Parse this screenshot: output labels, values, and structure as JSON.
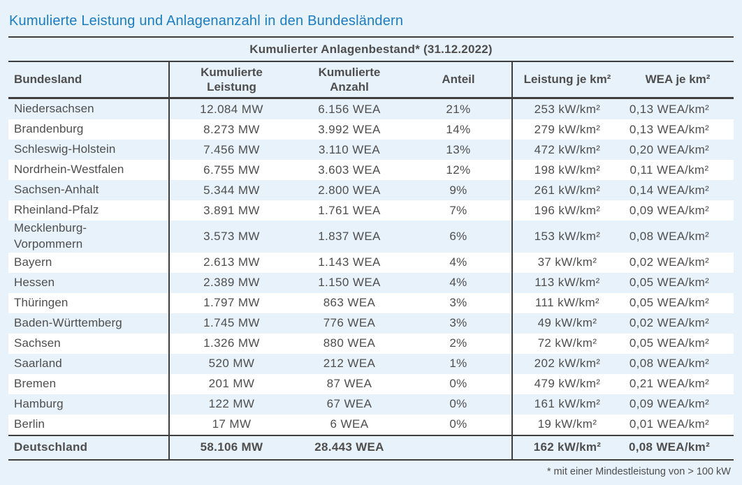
{
  "title": "Kumulierte Leistung und Anlagenanzahl in den Bundesländern",
  "table": {
    "band_header": "Kumulierter Anlagenbestand* (31.12.2022)",
    "columns": [
      "Bundesland",
      "Kumulierte\nLeistung",
      "Kumulierte\nAnzahl",
      "Anteil",
      "Leistung je km²",
      "WEA je km²"
    ],
    "rows": [
      {
        "state": "Niedersachsen",
        "power": "12.084 MW",
        "count": "6.156 WEA",
        "share": "21%",
        "power_density": "253 kW/km²",
        "wea_density": "0,13 WEA/km²"
      },
      {
        "state": "Brandenburg",
        "power": "8.273 MW",
        "count": "3.992 WEA",
        "share": "14%",
        "power_density": "279 kW/km²",
        "wea_density": "0,13 WEA/km²"
      },
      {
        "state": "Schleswig-Holstein",
        "power": "7.456 MW",
        "count": "3.110 WEA",
        "share": "13%",
        "power_density": "472 kW/km²",
        "wea_density": "0,20 WEA/km²"
      },
      {
        "state": "Nordrhein-Westfalen",
        "power": "6.755 MW",
        "count": "3.603 WEA",
        "share": "12%",
        "power_density": "198 kW/km²",
        "wea_density": "0,11 WEA/km²"
      },
      {
        "state": "Sachsen-Anhalt",
        "power": "5.344 MW",
        "count": "2.800 WEA",
        "share": "9%",
        "power_density": "261 kW/km²",
        "wea_density": "0,14 WEA/km²"
      },
      {
        "state": "Rheinland-Pfalz",
        "power": "3.891 MW",
        "count": "1.761 WEA",
        "share": "7%",
        "power_density": "196 kW/km²",
        "wea_density": "0,09 WEA/km²"
      },
      {
        "state": "Mecklenburg-\nVorpommern",
        "power": "3.573 MW",
        "count": "1.837 WEA",
        "share": "6%",
        "power_density": "153 kW/km²",
        "wea_density": "0,08 WEA/km²"
      },
      {
        "state": "Bayern",
        "power": "2.613 MW",
        "count": "1.143 WEA",
        "share": "4%",
        "power_density": "37 kW/km²",
        "wea_density": "0,02 WEA/km²"
      },
      {
        "state": "Hessen",
        "power": "2.389 MW",
        "count": "1.150 WEA",
        "share": "4%",
        "power_density": "113 kW/km²",
        "wea_density": "0,05 WEA/km²"
      },
      {
        "state": "Thüringen",
        "power": "1.797 MW",
        "count": "863 WEA",
        "share": "3%",
        "power_density": "111 kW/km²",
        "wea_density": "0,05 WEA/km²"
      },
      {
        "state": "Baden-Württemberg",
        "power": "1.745 MW",
        "count": "776 WEA",
        "share": "3%",
        "power_density": "49 kW/km²",
        "wea_density": "0,02 WEA/km²"
      },
      {
        "state": "Sachsen",
        "power": "1.326 MW",
        "count": "880 WEA",
        "share": "2%",
        "power_density": "72 kW/km²",
        "wea_density": "0,05 WEA/km²"
      },
      {
        "state": "Saarland",
        "power": "520 MW",
        "count": "212 WEA",
        "share": "1%",
        "power_density": "202 kW/km²",
        "wea_density": "0,08 WEA/km²"
      },
      {
        "state": "Bremen",
        "power": "201 MW",
        "count": "87 WEA",
        "share": "0%",
        "power_density": "479 kW/km²",
        "wea_density": "0,21 WEA/km²"
      },
      {
        "state": "Hamburg",
        "power": "122 MW",
        "count": "67 WEA",
        "share": "0%",
        "power_density": "161 kW/km²",
        "wea_density": "0,09 WEA/km²"
      },
      {
        "state": "Berlin",
        "power": "17 MW",
        "count": "6 WEA",
        "share": "0%",
        "power_density": "19 kW/km²",
        "wea_density": "0,01 WEA/km²"
      }
    ],
    "total": {
      "state": "Deutschland",
      "power": "58.106 MW",
      "count": "28.443 WEA",
      "share": "",
      "power_density": "162 kW/km²",
      "wea_density": "0,08 WEA/km²"
    }
  },
  "footnote": "* mit einer Mindestleistung von > 100 kW",
  "colors": {
    "background": "#e8f2fa",
    "row_stripe": "#e8f2fa",
    "row_alt": "#ffffff",
    "rule_dark": "#3e3e3e",
    "title_blue": "#1b7dc1",
    "text_gray": "#4e4e4e"
  }
}
